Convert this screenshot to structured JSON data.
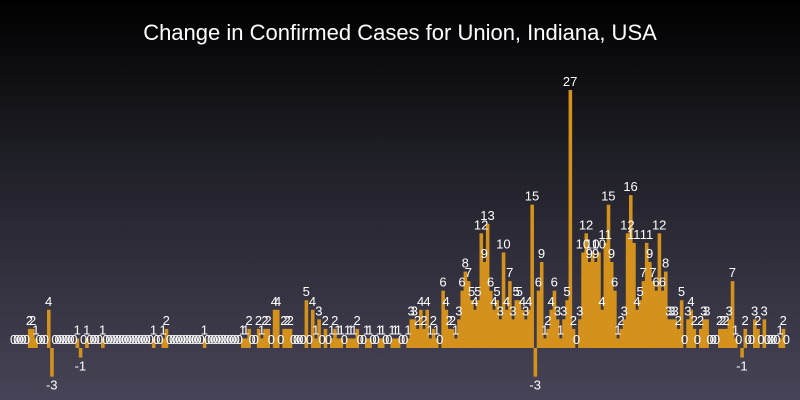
{
  "chart_data": {
    "type": "bar",
    "title": "Change in Confirmed Cases for Union, Indiana, USA",
    "xlabel": "",
    "ylabel": "",
    "grid": false,
    "legend": "none",
    "bar_color": "#d4911c",
    "label_color": "#ffffff",
    "values": [
      0,
      0,
      0,
      0,
      0,
      2,
      2,
      1,
      0,
      0,
      0,
      4,
      -3,
      0,
      0,
      0,
      0,
      0,
      0,
      0,
      1,
      -1,
      0,
      1,
      0,
      0,
      0,
      0,
      1,
      0,
      0,
      0,
      0,
      0,
      0,
      0,
      0,
      0,
      0,
      0,
      0,
      0,
      0,
      0,
      1,
      0,
      0,
      1,
      2,
      0,
      0,
      0,
      0,
      0,
      0,
      0,
      0,
      0,
      0,
      0,
      1,
      0,
      0,
      0,
      0,
      0,
      0,
      0,
      0,
      0,
      0,
      0,
      1,
      1,
      2,
      0,
      0,
      2,
      1,
      2,
      2,
      0,
      4,
      4,
      0,
      2,
      2,
      2,
      0,
      0,
      0,
      0,
      5,
      0,
      4,
      1,
      3,
      0,
      2,
      0,
      1,
      2,
      1,
      1,
      0,
      1,
      1,
      1,
      2,
      0,
      0,
      1,
      1,
      0,
      0,
      1,
      1,
      0,
      0,
      1,
      1,
      1,
      0,
      0,
      1,
      3,
      3,
      2,
      4,
      2,
      4,
      1,
      2,
      1,
      0,
      6,
      4,
      2,
      2,
      1,
      3,
      6,
      8,
      7,
      5,
      4,
      5,
      12,
      9,
      13,
      6,
      4,
      5,
      3,
      10,
      4,
      7,
      3,
      5,
      5,
      4,
      3,
      4,
      15,
      -3,
      6,
      9,
      1,
      2,
      4,
      6,
      3,
      1,
      3,
      5,
      27,
      2,
      0,
      3,
      10,
      12,
      9,
      10,
      9,
      10,
      4,
      11,
      15,
      9,
      6,
      1,
      2,
      3,
      12,
      16,
      11,
      4,
      5,
      7,
      11,
      9,
      7,
      6,
      12,
      6,
      8,
      3,
      3,
      3,
      2,
      5,
      0,
      3,
      4,
      2,
      0,
      2,
      3,
      3,
      0,
      0,
      0,
      2,
      2,
      2,
      3,
      7,
      1,
      0,
      -1,
      2,
      0,
      0,
      3,
      2,
      0,
      3,
      0,
      0,
      0,
      0,
      1,
      2,
      0
    ],
    "ylim": [
      -3,
      27
    ]
  }
}
